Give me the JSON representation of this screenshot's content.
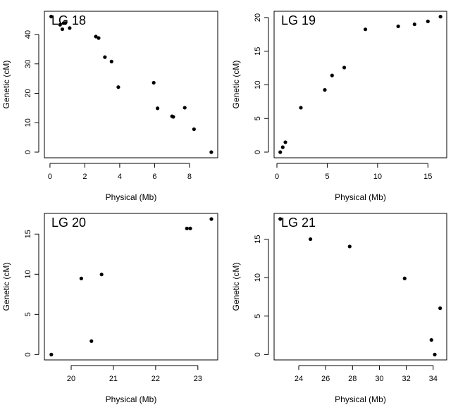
{
  "chart_data": [
    {
      "type": "scatter",
      "title": "LG 18",
      "xlabel": "Physical (Mb)",
      "ylabel": "Genetic (cM)",
      "xlim": [
        -0.32,
        9.62
      ],
      "ylim": [
        -1.92,
        47.9
      ],
      "xticks": [
        0,
        2,
        4,
        6,
        8
      ],
      "yticks": [
        0,
        10,
        20,
        30,
        40
      ],
      "x": [
        0.07,
        0.58,
        0.71,
        0.79,
        0.88,
        1.13,
        2.63,
        2.79,
        3.15,
        3.53,
        3.92,
        5.95,
        6.17,
        7.0,
        7.07,
        7.73,
        8.26,
        9.25
      ],
      "y": [
        46.1,
        43.3,
        41.8,
        43.9,
        43.9,
        42.2,
        39.3,
        38.8,
        32.3,
        30.8,
        22.1,
        23.6,
        14.9,
        12.2,
        12.0,
        15.1,
        7.8,
        0.0
      ]
    },
    {
      "type": "scatter",
      "title": "LG 19",
      "xlabel": "Physical (Mb)",
      "ylabel": "Genetic (cM)",
      "xlim": [
        -0.28,
        16.87
      ],
      "ylim": [
        -0.84,
        20.94
      ],
      "xticks": [
        0,
        5,
        10,
        15
      ],
      "yticks": [
        0,
        5,
        10,
        15,
        20
      ],
      "x": [
        0.33,
        0.58,
        0.84,
        2.38,
        4.76,
        5.48,
        6.69,
        8.79,
        12.05,
        13.67,
        15.0,
        16.25
      ],
      "y": [
        0.0,
        0.73,
        1.47,
        6.6,
        9.25,
        11.4,
        12.57,
        18.25,
        18.7,
        19.0,
        19.44,
        20.14
      ]
    },
    {
      "type": "scatter",
      "title": "LG 20",
      "xlabel": "Physical (Mb)",
      "ylabel": "Genetic (cM)",
      "xlim": [
        19.366,
        23.47
      ],
      "ylim": [
        -0.67,
        17.57
      ],
      "xticks": [
        20,
        21,
        22,
        23
      ],
      "yticks": [
        0,
        5,
        10,
        15
      ],
      "x": [
        19.53,
        20.24,
        20.48,
        20.72,
        22.74,
        22.82,
        23.32
      ],
      "y": [
        0.0,
        9.47,
        1.67,
        9.97,
        15.7,
        15.7,
        16.87
      ]
    },
    {
      "type": "scatter",
      "title": "LG 21",
      "xlabel": "Physical (Mb)",
      "ylabel": "Genetic (cM)",
      "xlim": [
        22.165,
        35.01
      ],
      "ylim": [
        -0.7,
        18.35
      ],
      "xticks": [
        24,
        26,
        28,
        30,
        32,
        34
      ],
      "yticks": [
        0,
        5,
        10,
        15
      ],
      "x": [
        22.62,
        24.87,
        27.79,
        31.88,
        33.87,
        34.12,
        34.52
      ],
      "y": [
        17.63,
        15.0,
        14.05,
        9.9,
        1.9,
        0.0,
        6.02
      ]
    }
  ]
}
